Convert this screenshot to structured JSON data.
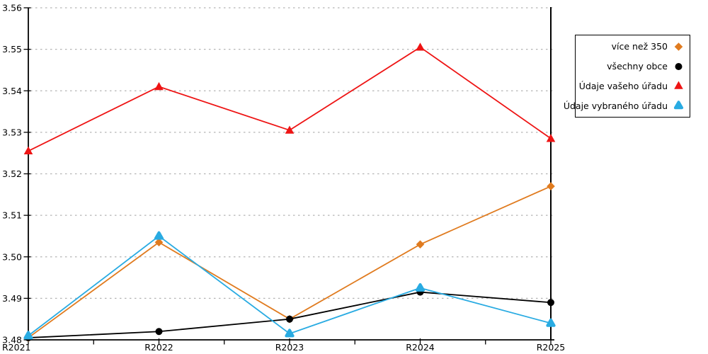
{
  "chart_data": {
    "type": "line",
    "title": "",
    "x_labels": [
      "R2021",
      "R2022",
      "R2023",
      "R2024",
      "R2025"
    ],
    "ylim": [
      3.48,
      3.56
    ],
    "yticks": [
      "3.48",
      "3.49",
      "3.50",
      "3.51",
      "3.52",
      "3.53",
      "3.54",
      "3.55",
      "3.56"
    ],
    "grid": "horizontal-dashed",
    "legend_position": "outside-top-right",
    "highlighted_x": "R2025",
    "series": [
      {
        "name": "více než 350",
        "marker": "diamond",
        "color": "#E07B1F",
        "values": [
          3.4805,
          3.5035,
          3.485,
          3.503,
          3.517
        ]
      },
      {
        "name": "všechny obce",
        "marker": "circle",
        "color": "#000000",
        "values": [
          3.4805,
          3.482,
          3.485,
          3.4915,
          3.489
        ]
      },
      {
        "name": "Údaje vašeho úřadu",
        "marker": "triangle",
        "color": "#EE1414",
        "values": [
          3.5255,
          3.541,
          3.5305,
          3.5505,
          3.5285
        ]
      },
      {
        "name": "Údaje vybraného úřadu",
        "marker": "triangle-rounded",
        "color": "#29ABE2",
        "values": [
          3.481,
          3.505,
          3.4815,
          3.4925,
          3.484
        ]
      }
    ],
    "colors": {
      "grid": "#B3B3B3",
      "axis": "#000000",
      "background": "#FFFFFF"
    }
  }
}
